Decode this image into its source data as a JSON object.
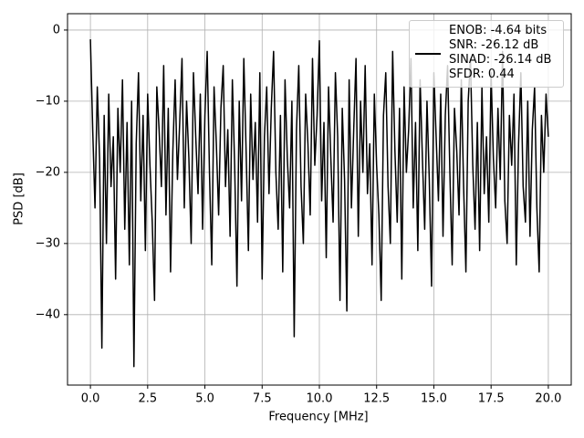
{
  "chart_data": {
    "type": "line",
    "xlabel": "Frequency [MHz]",
    "ylabel": "PSD [dB]",
    "xlim": [
      -1,
      21
    ],
    "ylim": [
      -49.9,
      2.3
    ],
    "xticks": [
      {
        "value": 0,
        "label": "0.0"
      },
      2.5,
      {
        "value": 5,
        "label": "5.0"
      },
      7.5,
      {
        "value": 10,
        "label": "10.0"
      },
      12.5,
      {
        "value": 15,
        "label": "15.0"
      },
      17.5,
      {
        "value": 20,
        "label": "20.0"
      }
    ],
    "yticks": [
      0,
      {
        "value": -10,
        "label": "−10"
      },
      {
        "value": -20,
        "label": "−20"
      },
      {
        "value": -30,
        "label": "−30"
      },
      {
        "value": -40,
        "label": "−40"
      }
    ],
    "grid": true,
    "legend": "upper right",
    "x": [
      0,
      0.1,
      0.2,
      0.3,
      0.4,
      0.5,
      0.6,
      0.7,
      0.8,
      0.9,
      1,
      1.1,
      1.2,
      1.3,
      1.4,
      1.5,
      1.6,
      1.7,
      1.8,
      1.9,
      2,
      2.1,
      2.2,
      2.3,
      2.4,
      2.5,
      2.6,
      2.7,
      2.8,
      2.9,
      3,
      3.1,
      3.2,
      3.3,
      3.4,
      3.5,
      3.6,
      3.7,
      3.8,
      3.9,
      4,
      4.1,
      4.2,
      4.3,
      4.4,
      4.5,
      4.6,
      4.7,
      4.8,
      4.9,
      5,
      5.1,
      5.2,
      5.3,
      5.4,
      5.5,
      5.6,
      5.7,
      5.8,
      5.9,
      6,
      6.1,
      6.2,
      6.3,
      6.4,
      6.5,
      6.6,
      6.7,
      6.8,
      6.9,
      7,
      7.1,
      7.2,
      7.3,
      7.4,
      7.5,
      7.6,
      7.7,
      7.8,
      7.9,
      8,
      8.1,
      8.2,
      8.3,
      8.4,
      8.5,
      8.6,
      8.7,
      8.8,
      8.9,
      9,
      9.1,
      9.2,
      9.3,
      9.4,
      9.5,
      9.6,
      9.7,
      9.8,
      9.9,
      10,
      10.1,
      10.2,
      10.3,
      10.4,
      10.5,
      10.6,
      10.7,
      10.8,
      10.9,
      11,
      11.1,
      11.2,
      11.3,
      11.4,
      11.5,
      11.6,
      11.7,
      11.8,
      11.9,
      12,
      12.1,
      12.2,
      12.3,
      12.4,
      12.5,
      12.6,
      12.7,
      12.8,
      12.9,
      13,
      13.1,
      13.2,
      13.3,
      13.4,
      13.5,
      13.6,
      13.7,
      13.8,
      13.9,
      14,
      14.1,
      14.2,
      14.3,
      14.4,
      14.5,
      14.6,
      14.7,
      14.8,
      14.9,
      15,
      15.1,
      15.2,
      15.3,
      15.4,
      15.5,
      15.6,
      15.7,
      15.8,
      15.9,
      16,
      16.1,
      16.2,
      16.3,
      16.4,
      16.5,
      16.6,
      16.7,
      16.8,
      16.9,
      17,
      17.1,
      17.2,
      17.3,
      17.4,
      17.5,
      17.6,
      17.7,
      17.8,
      17.9,
      18,
      18.1,
      18.2,
      18.3,
      18.4,
      18.5,
      18.6,
      18.7,
      18.8,
      18.9,
      19,
      19.1,
      19.2,
      19.3,
      19.4,
      19.5,
      19.6,
      19.7,
      19.8,
      19.9,
      20
    ],
    "series": [
      {
        "name": "ENOB: -4.64 bits\nSNR: -26.12 dB\nSINAD: -26.14 dB\nSFDR: 0.44",
        "color": "#000000",
        "values": [
          -1.3,
          -14,
          -25,
          -8,
          -18,
          -44.7,
          -12,
          -30,
          -9,
          -22,
          -15,
          -35,
          -11,
          -20,
          -7,
          -28,
          -13,
          -33,
          -10,
          -47.3,
          -16,
          -6,
          -24,
          -12,
          -31,
          -9,
          -19,
          -27,
          -38,
          -8,
          -14,
          -22,
          -5,
          -26,
          -11,
          -34,
          -17,
          -7,
          -21,
          -13,
          -4,
          -25,
          -10,
          -18,
          -30,
          -6,
          -15,
          -23,
          -9,
          -28,
          -12,
          -3,
          -20,
          -33,
          -8,
          -16,
          -26,
          -11,
          -5,
          -22,
          -14,
          -29,
          -7,
          -19,
          -36,
          -10,
          -24,
          -4,
          -17,
          -31,
          -9,
          -21,
          -13,
          -27,
          -6,
          -35,
          -15,
          -8,
          -23,
          -11,
          -3,
          -20,
          -28,
          -12,
          -34,
          -7,
          -18,
          -25,
          -10,
          -43.1,
          -14,
          -5,
          -22,
          -30,
          -9,
          -16,
          -26,
          -4,
          -19,
          -12,
          -1.5,
          -24,
          -13,
          -32,
          -8,
          -18,
          -27,
          -6,
          -15,
          -38,
          -11,
          -21,
          -39.5,
          -7,
          -25,
          -14,
          -4,
          -29,
          -10,
          -20,
          -5,
          -23,
          -16,
          -33,
          -9,
          -19,
          -26,
          -38,
          -12,
          -6,
          -22,
          -30,
          -3,
          -17,
          -27,
          -11,
          -35,
          -8,
          -20,
          -14,
          -4,
          -25,
          -13,
          -31,
          -7,
          -18,
          -28,
          -10,
          -21,
          -36,
          -6,
          -15,
          -24,
          -9,
          -29,
          -12,
          -5,
          -20,
          -33,
          -11,
          -17,
          -26,
          -7,
          -22,
          -34,
          -10,
          -4,
          -19,
          -28,
          -13,
          -31,
          -8,
          -23,
          -15,
          -27,
          -6,
          -18,
          -25,
          -11,
          -21,
          -3,
          -24,
          -30,
          -12,
          -19,
          -9,
          -33,
          -16,
          -6,
          -22,
          -27,
          -10,
          -29,
          -14,
          -8,
          -25,
          -34,
          -12,
          -20,
          -9,
          -15
        ]
      }
    ]
  }
}
